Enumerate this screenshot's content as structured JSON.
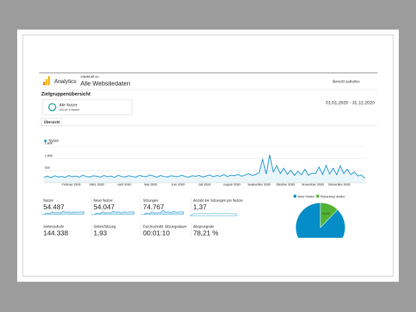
{
  "header": {
    "product": "Analytics",
    "account": "Jobaktuell.eu",
    "property": "Alle Websitedaten",
    "report_link": "Bericht aufrufen"
  },
  "page_title": "Zielgruppenübersicht",
  "segment": {
    "name": "Alle Nutzer",
    "sub": "100,00 % Nutzer"
  },
  "date_range": "01.01.2020 - 31.12.2020",
  "tab": "Übersicht",
  "chart_data": [
    {
      "type": "line",
      "x": [
        0,
        4,
        8,
        12,
        16,
        20,
        24,
        28,
        32,
        36,
        40,
        44,
        48,
        52,
        56,
        60,
        64,
        68,
        72,
        76,
        80,
        84,
        88,
        92,
        96,
        100,
        104,
        108,
        112,
        116,
        120,
        124,
        128,
        132,
        136,
        140,
        144,
        148,
        152,
        156,
        160,
        164,
        168,
        172,
        176,
        180,
        184,
        188,
        192,
        196,
        200,
        204,
        208,
        212,
        216,
        220,
        224,
        228,
        232,
        236,
        240,
        244,
        248,
        252,
        256,
        260,
        264,
        268,
        272,
        276,
        280,
        284,
        288,
        292,
        296,
        300,
        304,
        308,
        312,
        316,
        320,
        324,
        328,
        332,
        336,
        340,
        344,
        348,
        352,
        356,
        360,
        364
      ],
      "series": [
        {
          "name": "Nutzer",
          "color": "#058dc7",
          "values": [
            230,
            270,
            210,
            290,
            240,
            260,
            220,
            300,
            250,
            280,
            230,
            310,
            260,
            240,
            290,
            270,
            230,
            300,
            250,
            280,
            220,
            310,
            260,
            240,
            290,
            260,
            230,
            300,
            270,
            250,
            320,
            280,
            230,
            300,
            260,
            240,
            290,
            270,
            250,
            310,
            260,
            230,
            290,
            270,
            300,
            240,
            280,
            320,
            250,
            300,
            270,
            340,
            260,
            310,
            290,
            350,
            270,
            320,
            380,
            300,
            340,
            420,
            980,
            360,
            1150,
            450,
            700,
            380,
            600,
            350,
            520,
            300,
            480,
            330,
            560,
            310,
            400,
            380,
            650,
            340,
            720,
            360,
            600,
            330,
            700,
            380,
            560,
            340,
            450,
            280,
            320,
            180
          ]
        }
      ],
      "xlim": [
        0,
        365
      ],
      "xticks": [
        {
          "value": 31,
          "label": "Februar 2020"
        },
        {
          "value": 60,
          "label": "März 2020"
        },
        {
          "value": 91,
          "label": "April 2020"
        },
        {
          "value": 121,
          "label": "Mai 2020"
        },
        {
          "value": 152,
          "label": "Juni 2020"
        },
        {
          "value": 182,
          "label": "Juli 2020"
        },
        {
          "value": 213,
          "label": "August 2020"
        },
        {
          "value": 244,
          "label": "September 2020"
        },
        {
          "value": 274,
          "label": "Oktober 2020"
        },
        {
          "value": 305,
          "label": "November 2020"
        },
        {
          "value": 335,
          "label": "Dezember 2020"
        }
      ],
      "ylim": [
        0,
        1500
      ],
      "yticks": [
        500,
        {
          "value": 1000,
          "label": "1.000"
        },
        {
          "value": 1500,
          "label": "1.500"
        }
      ],
      "grid": true
    },
    {
      "type": "pie",
      "categories": [
        "New Visitor",
        "Returning Visitor"
      ],
      "colors": [
        "#058dc7",
        "#50b432"
      ],
      "values": [
        87.8,
        12.2
      ],
      "value_labels": [
        null,
        "12,2%"
      ]
    }
  ],
  "metrics": [
    {
      "label": "Nutzer",
      "value": "54.487"
    },
    {
      "label": "Neue Nutzer",
      "value": "54.047"
    },
    {
      "label": "Sitzungen",
      "value": "74.767"
    },
    {
      "label": "Anzahl der Sitzungen pro Nutzer",
      "value": "1,37"
    },
    {
      "label": "Seitenaufrufe",
      "value": "144.338"
    },
    {
      "label": "Seiten/Sitzung",
      "value": "1,93"
    },
    {
      "label": "Durchschnittl. Sitzungsdauer",
      "value": "00:01:10"
    },
    {
      "label": "Absprungrate",
      "value": "78,21 %"
    }
  ]
}
